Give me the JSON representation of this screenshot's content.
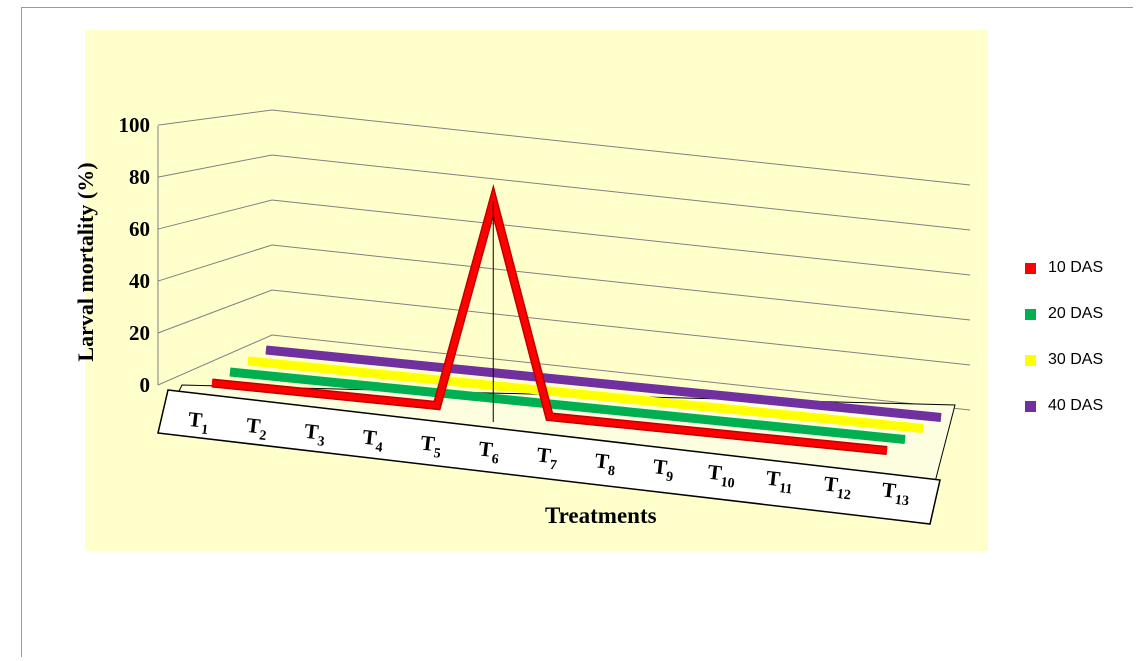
{
  "chart_data": {
    "type": "line",
    "style": "3d",
    "categories": [
      "T1",
      "T2",
      "T3",
      "T4",
      "T5",
      "T6",
      "T7",
      "T8",
      "T9",
      "T10",
      "T11",
      "T12",
      "T13"
    ],
    "category_labels": [
      {
        "base": "T",
        "sub": "1"
      },
      {
        "base": "T",
        "sub": "2"
      },
      {
        "base": "T",
        "sub": "3"
      },
      {
        "base": "T",
        "sub": "4"
      },
      {
        "base": "T",
        "sub": "5"
      },
      {
        "base": "T",
        "sub": "6"
      },
      {
        "base": "T",
        "sub": "7"
      },
      {
        "base": "T",
        "sub": "8"
      },
      {
        "base": "T",
        "sub": "9"
      },
      {
        "base": "T",
        "sub": "10"
      },
      {
        "base": "T",
        "sub": "11"
      },
      {
        "base": "T",
        "sub": "12"
      },
      {
        "base": "T",
        "sub": "13"
      }
    ],
    "series": [
      {
        "name": "10 DAS",
        "color": "#ff0000",
        "values": [
          0,
          0,
          0,
          0,
          0,
          93.3,
          0,
          0,
          0,
          0,
          0,
          0,
          0
        ]
      },
      {
        "name": "20 DAS",
        "color": "#00b050",
        "values": [
          0,
          0,
          0,
          0,
          0,
          0,
          0,
          0,
          0,
          0,
          0,
          0,
          0
        ]
      },
      {
        "name": "30 DAS",
        "color": "#ffff00",
        "values": [
          0,
          0,
          0,
          0,
          0,
          0,
          0,
          0,
          0,
          0,
          0,
          0,
          0
        ]
      },
      {
        "name": "40 DAS",
        "color": "#7030a0",
        "values": [
          0,
          0,
          0,
          0,
          0,
          0,
          0,
          0,
          0,
          0,
          0,
          0,
          0
        ]
      }
    ],
    "title": "",
    "xlabel": "Treatments",
    "ylabel": "Larval mortality (%)",
    "ylim": [
      0,
      100
    ],
    "yticks": [
      "0",
      "20",
      "40",
      "60",
      "80",
      "100"
    ],
    "grid": true,
    "legend_position": "right",
    "background_color": "#ffffcc"
  }
}
